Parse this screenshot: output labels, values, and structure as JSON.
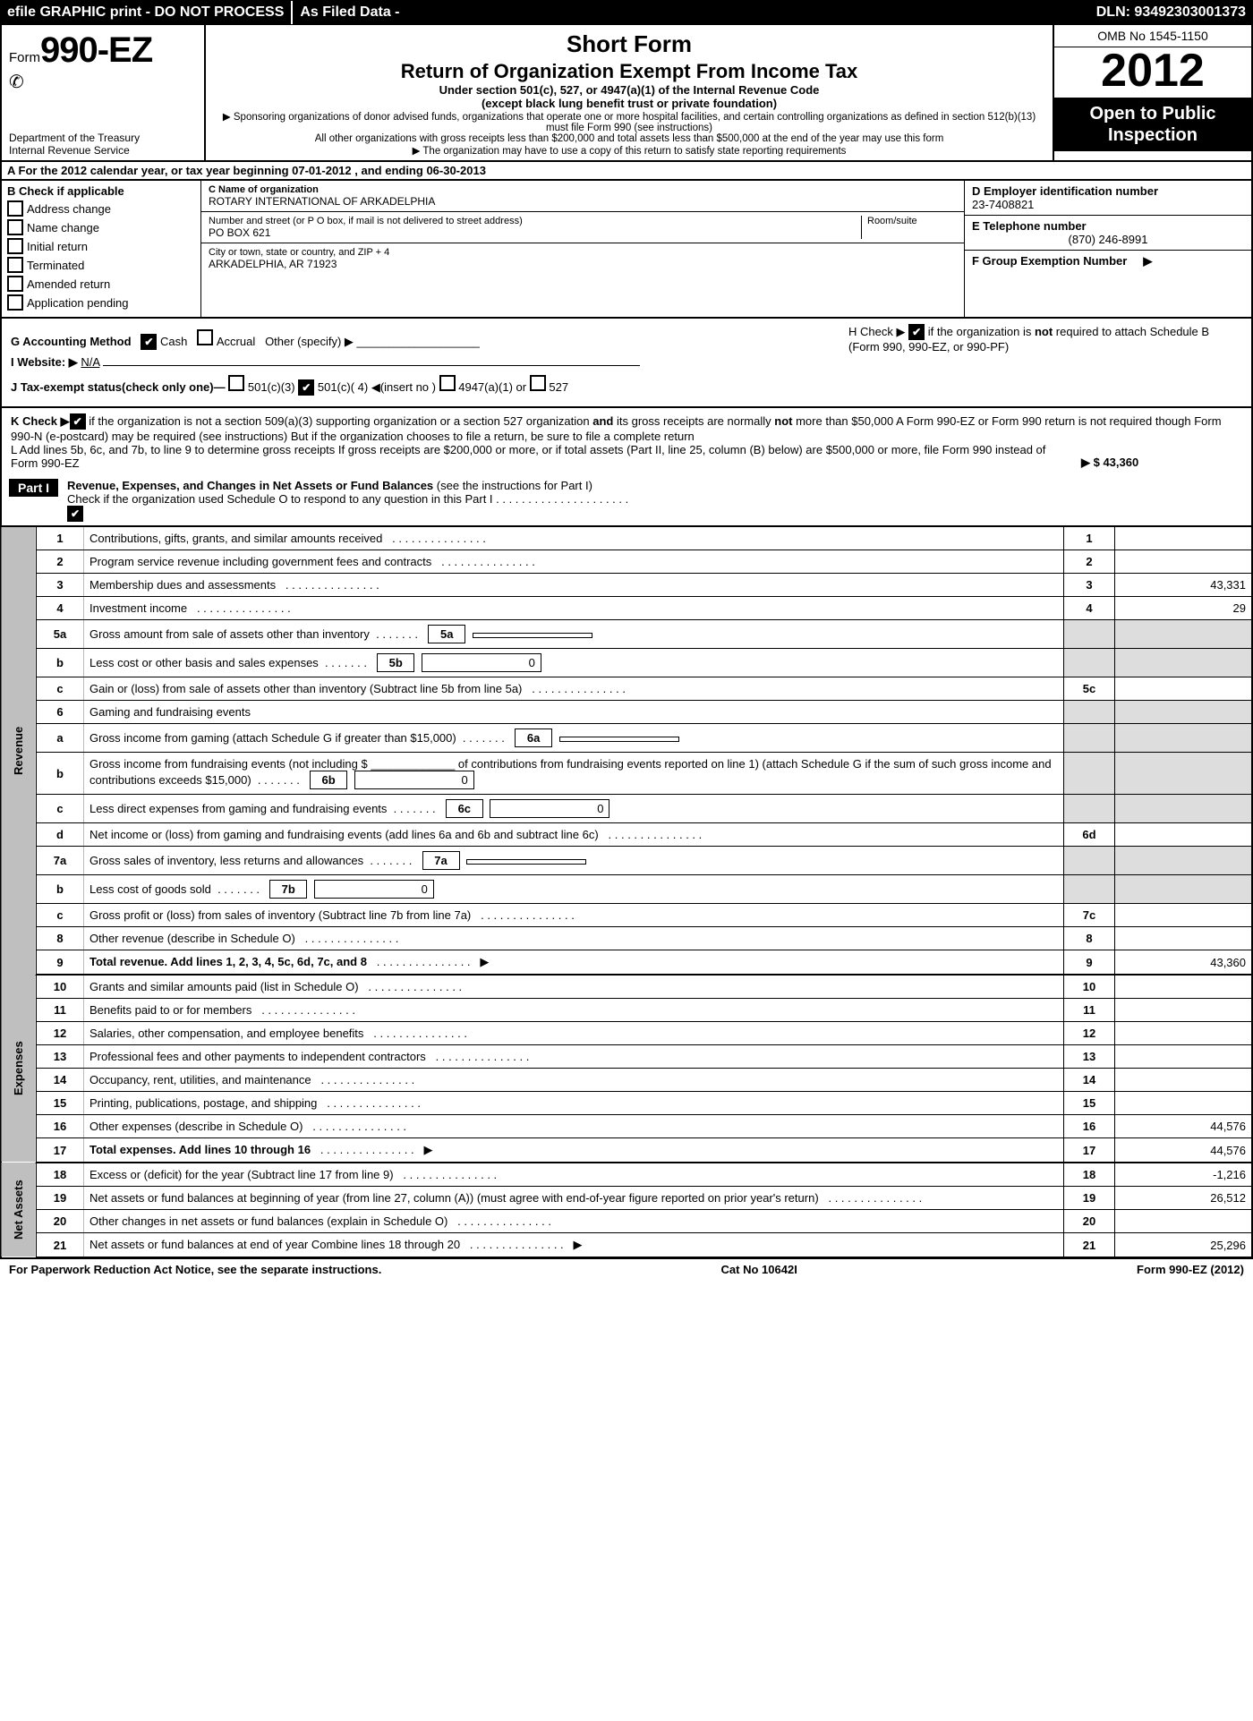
{
  "topbar": {
    "efile": "efile GRAPHIC print - DO NOT PROCESS",
    "asfiled": "As Filed Data -",
    "dln_label": "DLN:",
    "dln": "93492303001373"
  },
  "header": {
    "form_prefix": "Form",
    "form_num": "990-EZ",
    "dept1": "Department of the Treasury",
    "dept2": "Internal Revenue Service",
    "short_form": "Short Form",
    "title": "Return of Organization Exempt From Income Tax",
    "sub1": "Under section 501(c), 527, or 4947(a)(1) of the Internal Revenue Code",
    "sub2": "(except black lung benefit trust or private foundation)",
    "note1": "▶ Sponsoring organizations of donor advised funds, organizations that operate one or more hospital facilities, and certain controlling organizations as defined in section 512(b)(13) must file Form 990 (see instructions)",
    "note2": "All other organizations with gross receipts less than $200,000 and total assets less than $500,000 at the end of the year may use this form",
    "note3": "▶ The organization may have to use a copy of this return to satisfy state reporting requirements",
    "omb": "OMB No  1545-1150",
    "year": "2012",
    "open_pub1": "Open to Public",
    "open_pub2": "Inspection"
  },
  "sectionA": {
    "text_pre": "A  For the 2012 calendar year, or tax year beginning ",
    "begin": "07-01-2012",
    "text_mid": ", and ending ",
    "end": "06-30-2013"
  },
  "B": {
    "hdr": "B  Check if applicable",
    "items": [
      "Address change",
      "Name change",
      "Initial return",
      "Terminated",
      "Amended return",
      "Application pending"
    ]
  },
  "C": {
    "name_lbl": "C Name of organization",
    "name": "ROTARY INTERNATIONAL OF ARKADELPHIA",
    "addr_lbl": "Number and street (or P  O  box, if mail is not delivered to street address)",
    "room_lbl": "Room/suite",
    "addr": "PO BOX 621",
    "city_lbl": "City or town, state or country, and ZIP + 4",
    "city": "ARKADELPHIA, AR  71923"
  },
  "D": {
    "ein_lbl": "D Employer identification number",
    "ein": "23-7408821",
    "tel_lbl": "E Telephone number",
    "tel": "(870) 246-8991",
    "grp_lbl": "F Group Exemption Number",
    "grp_arrow": "▶"
  },
  "GHIJ": {
    "G_lbl": "G Accounting Method",
    "G_cash": "Cash",
    "G_accr": "Accrual",
    "G_other": "Other (specify) ▶",
    "H_text1": "H  Check ▶",
    "H_text2": "if the organization is ",
    "H_not": "not",
    "H_text3": " required to attach Schedule B (Form 990, 990-EZ, or 990-PF)",
    "I_lbl": "I Website: ▶",
    "I_val": "N/A",
    "J_text": "J Tax-exempt status(check only one)—",
    "J_501c3": "501(c)(3)",
    "J_501c": "501(c)( 4)",
    "J_ins": "◀(insert no )",
    "J_4947": "4947(a)(1) or",
    "J_527": "527"
  },
  "KL": {
    "K_pre": "K Check ▶",
    "K_text": " if the organization is not a section 509(a)(3) supporting organization or a section 527 organization ",
    "K_and": "and",
    "K_text2": " its gross receipts are normally ",
    "K_not": "not",
    "K_text3": " more than $50,000  A Form 990-EZ or Form 990 return is not required though Form 990-N (e-postcard) may be required (see instructions)  But if the organization chooses to file a return, be sure to file a complete return",
    "L_text": "L Add lines 5b, 6c, and 7b, to line 9 to determine gross receipts  If gross receipts are $200,000 or more, or if total assets (Part II, line 25, column (B) below) are $500,000 or more, file Form 990 instead of Form 990-EZ",
    "L_val": "▶ $ 43,360"
  },
  "part1": {
    "label": "Part I",
    "title": "Revenue, Expenses, and Changes in Net Assets or Fund Balances",
    "instr": "(see the instructions for Part I)",
    "check_line": "Check if the organization used Schedule O to respond to any question in this Part I  .  .  .  .  .  .  .  .  .  .  .  .  .  .  .  .  .  .  .  .  ."
  },
  "sections": {
    "revenue": "Revenue",
    "expenses": "Expenses",
    "netassets": "Net Assets"
  },
  "rows": [
    {
      "n": "1",
      "t": "Contributions, gifts, grants, and similar amounts received",
      "ln": "1",
      "v": ""
    },
    {
      "n": "2",
      "t": "Program service revenue including government fees and contracts",
      "ln": "2",
      "v": ""
    },
    {
      "n": "3",
      "t": "Membership dues and assessments",
      "ln": "3",
      "v": "43,331"
    },
    {
      "n": "4",
      "t": "Investment income",
      "ln": "4",
      "v": "29"
    },
    {
      "n": "5a",
      "t": "Gross amount from sale of assets other than inventory",
      "sub": "5a",
      "sv": ""
    },
    {
      "n": "b",
      "t": "Less  cost or other basis and sales expenses",
      "sub": "5b",
      "sv": "0"
    },
    {
      "n": "c",
      "t": "Gain or (loss) from sale of assets other than inventory (Subtract line 5b from line 5a)",
      "ln": "5c",
      "v": ""
    },
    {
      "n": "6",
      "t": "Gaming and fundraising events"
    },
    {
      "n": "a",
      "t": "Gross income from gaming (attach Schedule G if greater than $15,000)",
      "sub": "6a",
      "sv": ""
    },
    {
      "n": "b",
      "t": "Gross income from fundraising events (not including $ _____________ of contributions from fundraising events reported on line 1) (attach Schedule G if the sum of such gross income and contributions exceeds $15,000)",
      "sub": "6b",
      "sv": "0"
    },
    {
      "n": "c",
      "t": "Less  direct expenses from gaming and fundraising events",
      "sub": "6c",
      "sv": "0"
    },
    {
      "n": "d",
      "t": "Net income or (loss) from gaming and fundraising events (add lines 6a and 6b and subtract line 6c)",
      "ln": "6d",
      "v": ""
    },
    {
      "n": "7a",
      "t": "Gross sales of inventory, less returns and allowances",
      "sub": "7a",
      "sv": ""
    },
    {
      "n": "b",
      "t": "Less  cost of goods sold",
      "sub": "7b",
      "sv": "0"
    },
    {
      "n": "c",
      "t": "Gross profit or (loss) from sales of inventory (Subtract line 7b from line 7a)",
      "ln": "7c",
      "v": ""
    },
    {
      "n": "8",
      "t": "Other revenue (describe in Schedule O)",
      "ln": "8",
      "v": ""
    },
    {
      "n": "9",
      "t": "Total revenue. Add lines 1, 2, 3, 4, 5c, 6d, 7c, and 8",
      "ln": "9",
      "v": "43,360",
      "bold": true,
      "arrow": true
    }
  ],
  "exp_rows": [
    {
      "n": "10",
      "t": "Grants and similar amounts paid (list in Schedule O)",
      "ln": "10",
      "v": ""
    },
    {
      "n": "11",
      "t": "Benefits paid to or for members",
      "ln": "11",
      "v": ""
    },
    {
      "n": "12",
      "t": "Salaries, other compensation, and employee benefits",
      "ln": "12",
      "v": ""
    },
    {
      "n": "13",
      "t": "Professional fees and other payments to independent contractors",
      "ln": "13",
      "v": ""
    },
    {
      "n": "14",
      "t": "Occupancy, rent, utilities, and maintenance",
      "ln": "14",
      "v": ""
    },
    {
      "n": "15",
      "t": "Printing, publications, postage, and shipping",
      "ln": "15",
      "v": ""
    },
    {
      "n": "16",
      "t": "Other expenses (describe in Schedule O)",
      "ln": "16",
      "v": "44,576"
    },
    {
      "n": "17",
      "t": "Total expenses. Add lines 10 through 16",
      "ln": "17",
      "v": "44,576",
      "bold": true,
      "arrow": true
    }
  ],
  "na_rows": [
    {
      "n": "18",
      "t": "Excess or (deficit) for the year (Subtract line 17 from line 9)",
      "ln": "18",
      "v": "-1,216"
    },
    {
      "n": "19",
      "t": "Net assets or fund balances at beginning of year (from line 27, column (A)) (must agree with end-of-year figure reported on prior year's return)",
      "ln": "19",
      "v": "26,512"
    },
    {
      "n": "20",
      "t": "Other changes in net assets or fund balances (explain in Schedule O)",
      "ln": "20",
      "v": ""
    },
    {
      "n": "21",
      "t": "Net assets or fund balances at end of year  Combine lines 18 through 20",
      "ln": "21",
      "v": "25,296",
      "arrow": true
    }
  ],
  "footer": {
    "left": "For Paperwork Reduction Act Notice, see the separate instructions.",
    "mid": "Cat No  10642I",
    "right": "Form 990-EZ (2012)"
  }
}
